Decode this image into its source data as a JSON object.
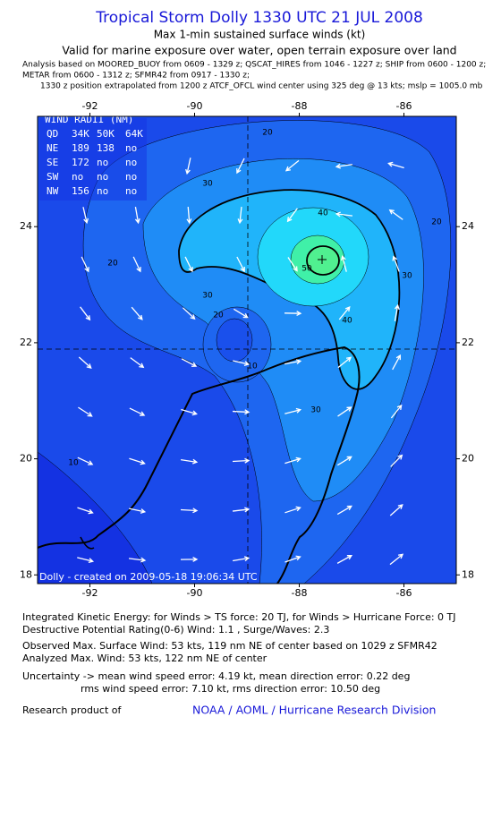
{
  "header": {
    "title": "Tropical Storm Dolly 1330 UTC 21 JUL 2008",
    "subtitle": "Max 1-min sustained surface winds (kt)",
    "validity": "Valid for marine exposure over water, open terrain exposure over land",
    "sources": [
      "Analysis based on   MOORED_BUOY from 0609 - 1329 z;  QSCAT_HIRES from 1046 - 1227 z;  SHIP from 0600 - 1200 z;",
      "METAR from 0600 - 1312 z;  SFMR42 from 0917 - 1330 z;",
      "1330 z position extrapolated from 1200 z ATCF_OFCL wind center using 325 deg @ 13 kts; mslp = 1005.0 mb"
    ]
  },
  "map": {
    "xlim": [
      -93,
      -85
    ],
    "ylim": [
      17.85,
      25.9
    ],
    "xticks": [
      -92,
      -90,
      -88,
      -86
    ],
    "yticks": [
      18,
      20,
      22,
      24
    ],
    "wind_radii": {
      "title": "WIND RADII (NM)",
      "rows": [
        [
          "QD",
          "34K",
          "50K",
          "64K"
        ],
        [
          "NE",
          "189",
          "138",
          "no"
        ],
        [
          "SE",
          "172",
          "no",
          "no"
        ],
        [
          "SW",
          "no",
          "no",
          "no"
        ],
        [
          "NW",
          "156",
          "no",
          "no"
        ]
      ]
    },
    "contour_labels": [
      20,
      30,
      40,
      50,
      20,
      30,
      20,
      10,
      30,
      40,
      30,
      20,
      10
    ],
    "footer": "Dolly - created on 2009-05-18 19:06:34 UTC"
  },
  "info": [
    "Integrated Kinetic Energy:  for Winds > TS force: 20 TJ,  for Winds > Hurricane Force: 0 TJ",
    "Destructive Potential Rating(0-6)   Wind: 1.1 , Surge/Waves: 2.3",
    "Observed Max. Surface Wind: 53 kts, 119 nm NE of center based on 1029 z SFMR42",
    "Analyzed Max. Wind: 53 kts, 122 nm NE of center",
    "Uncertainty -> mean wind speed error: 4.19 kt,   mean direction error: 0.22 deg",
    "rms wind speed error: 7.10 kt,   rms direction error: 10.50 deg"
  ],
  "credit": {
    "label": "Research product of",
    "link": "NOAA / AOML / Hurricane Research Division"
  }
}
